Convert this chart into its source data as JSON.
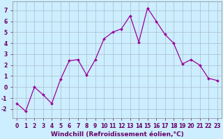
{
  "x": [
    0,
    1,
    2,
    3,
    4,
    5,
    6,
    7,
    8,
    9,
    10,
    11,
    12,
    13,
    14,
    15,
    16,
    17,
    18,
    19,
    20,
    21,
    22,
    23
  ],
  "y": [
    -1.5,
    -2.2,
    0.0,
    -0.7,
    -1.5,
    0.7,
    2.4,
    2.5,
    1.1,
    2.5,
    4.4,
    5.0,
    5.3,
    6.5,
    4.1,
    7.2,
    6.0,
    4.8,
    4.0,
    2.1,
    2.5,
    2.0,
    0.8,
    0.6
  ],
  "line_color": "#990099",
  "marker": "D",
  "markersize": 2.0,
  "linewidth": 0.9,
  "xlabel": "Windchill (Refroidissement éolien,°C)",
  "xlabel_fontsize": 6.5,
  "xlabel_color": "#660066",
  "xlabel_bold": true,
  "xtick_labels": [
    "0",
    "1",
    "2",
    "3",
    "4",
    "5",
    "6",
    "7",
    "8",
    "9",
    "10",
    "11",
    "12",
    "13",
    "14",
    "15",
    "16",
    "17",
    "18",
    "19",
    "20",
    "21",
    "22",
    "23"
  ],
  "ytick_values": [
    -2,
    -1,
    0,
    1,
    2,
    3,
    4,
    5,
    6,
    7
  ],
  "ylim": [
    -2.8,
    7.8
  ],
  "xlim": [
    -0.5,
    23.5
  ],
  "background_color": "#cceeff",
  "grid_color": "#aabbcc",
  "tick_fontsize": 5.5
}
